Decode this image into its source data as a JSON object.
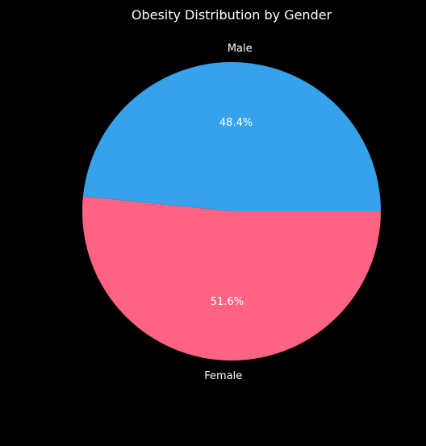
{
  "chart_data": {
    "type": "pie",
    "title": "Obesity Distribution by Gender",
    "labels": [
      "Male",
      "Female"
    ],
    "values": [
      48.4,
      51.6
    ],
    "value_labels": [
      "48.4%",
      "51.6%"
    ],
    "colors": [
      "#36a2eb",
      "#ff6384"
    ],
    "background": "#000000",
    "text_color": "#ffffff",
    "start_angle_deg": 0,
    "direction": "counterclockwise",
    "legend": "none"
  }
}
